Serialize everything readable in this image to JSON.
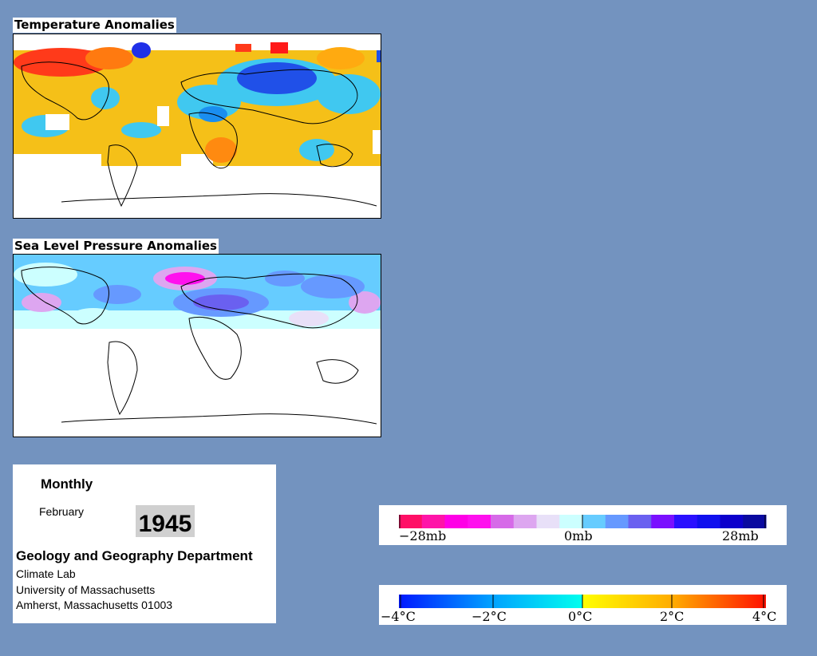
{
  "panels": {
    "temperature": {
      "title": "Temperature Anomalies"
    },
    "pressure": {
      "title": "Sea Level Pressure Anomalies"
    }
  },
  "info": {
    "period": "Monthly",
    "month": "February",
    "year": "1945",
    "department": "Geology and Geography Department",
    "lab": "Climate Lab",
    "university": "University of Massachusetts",
    "address": "Amherst, Massachusetts 01003"
  },
  "pressure_legend": {
    "labels": [
      "−28mb",
      "0mb",
      "28mb"
    ],
    "colors": [
      "#ff0f66",
      "#ff14a8",
      "#ff00e6",
      "#ff10ee",
      "#d66ae8",
      "#dda6f0",
      "#e8e0f8",
      "#ccffff",
      "#66ccff",
      "#6699ff",
      "#6a60f0",
      "#7a10ff",
      "#2a10ff",
      "#1010ee",
      "#0c00cc",
      "#0a0aa0"
    ]
  },
  "temperature_legend": {
    "labels": [
      "−4°C",
      "−2°C",
      "0°C",
      "2°C",
      "4°C"
    ],
    "stops": [
      "#0018ff",
      "#00a0ff",
      "#00ffee",
      "#ffff00",
      "#ffaa00",
      "#ff1000"
    ]
  },
  "colors": {
    "background": "#7393bf",
    "warm": "#f5c018",
    "hot": "#ff3a1a",
    "cool": "#40c8f0",
    "cold": "#2050e8"
  }
}
